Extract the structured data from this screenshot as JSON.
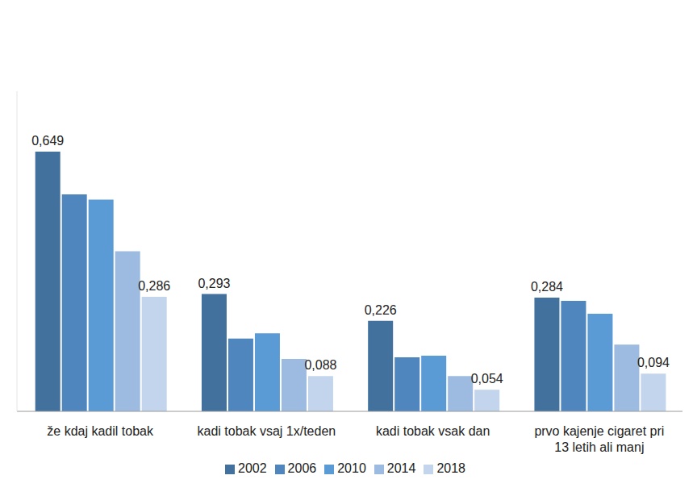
{
  "chart_data": {
    "type": "bar",
    "categories": [
      "že kdaj kadil tobak",
      "kadi tobak vsaj 1x/teden",
      "kadi tobak vsak dan",
      "prvo kajenje cigaret pri 13 letih ali manj"
    ],
    "series": [
      {
        "name": "2002",
        "color": "#43719e",
        "values": [
          0.649,
          0.293,
          0.226,
          0.284
        ],
        "value_labels": [
          "0,649",
          "0,293",
          "0,226",
          "0,284"
        ],
        "data_labels": true
      },
      {
        "name": "2006",
        "color": "#4f86be",
        "values": [
          0.542,
          0.182,
          0.135,
          0.276
        ],
        "data_labels": false
      },
      {
        "name": "2010",
        "color": "#5b9bd5",
        "values": [
          0.529,
          0.195,
          0.139,
          0.244
        ],
        "data_labels": false
      },
      {
        "name": "2014",
        "color": "#9dbbe0",
        "values": [
          0.4,
          0.131,
          0.088,
          0.167
        ],
        "data_labels": false
      },
      {
        "name": "2018",
        "color": "#c2d5ec",
        "values": [
          0.286,
          0.088,
          0.054,
          0.094
        ],
        "value_labels": [
          "0,286",
          "0,088",
          "0,054",
          "0,094"
        ],
        "data_labels": true
      }
    ],
    "ylim": [
      0,
      0.8
    ],
    "yticks": [],
    "tick_labels": "x",
    "legend": "bottom",
    "grid": false
  }
}
